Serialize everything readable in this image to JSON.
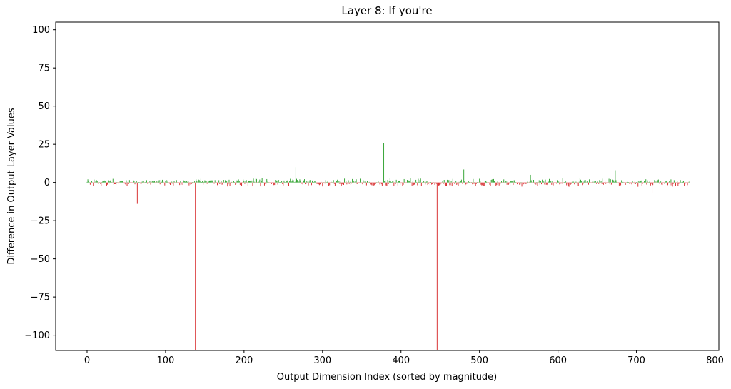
{
  "chart_data": {
    "type": "bar",
    "title": "Layer 8: If you're",
    "xlabel": "Output Dimension Index (sorted by magnitude)",
    "ylabel": "Difference in Output Layer Values",
    "xlim": [
      -40,
      805
    ],
    "ylim": [
      -110,
      105
    ],
    "xticks": [
      0,
      100,
      200,
      300,
      400,
      500,
      600,
      700,
      800
    ],
    "yticks": [
      -100,
      -75,
      -50,
      -25,
      0,
      25,
      50,
      75,
      100
    ],
    "colors": {
      "positive": "#2ca02c",
      "negative": "#d62728"
    },
    "bar_count": 768,
    "notable_values": [
      {
        "x": 64,
        "y": -14
      },
      {
        "x": 138,
        "y": -110
      },
      {
        "x": 266,
        "y": 10
      },
      {
        "x": 378,
        "y": 26
      },
      {
        "x": 446,
        "y": -110
      },
      {
        "x": 480,
        "y": 8.5
      },
      {
        "x": 565,
        "y": 5
      },
      {
        "x": 673,
        "y": 8
      },
      {
        "x": 720,
        "y": -7
      }
    ],
    "background_range": [
      -3,
      3
    ]
  }
}
